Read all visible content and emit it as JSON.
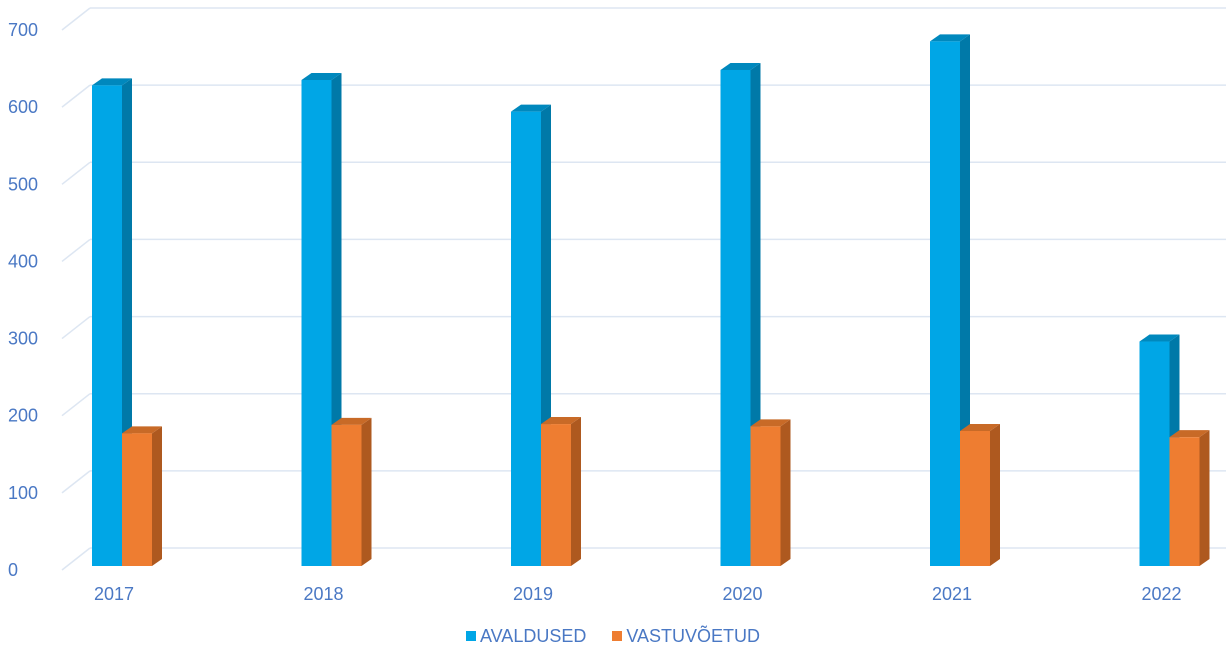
{
  "chart_data": {
    "type": "bar",
    "style": "3d-clustered-column",
    "categories": [
      "2017",
      "2018",
      "2019",
      "2020",
      "2021",
      "2022"
    ],
    "series": [
      {
        "name": "AVALDUSED",
        "values": [
          623,
          630,
          589,
          643,
          680,
          291
        ],
        "color": "#00a6e6",
        "side_color": "#0079a8",
        "top_color": "#0088bd"
      },
      {
        "name": "VASTUVÕETUD",
        "values": [
          172,
          183,
          184,
          181,
          175,
          167
        ],
        "color": "#ee7d31",
        "side_color": "#ae591f",
        "top_color": "#c86a27"
      }
    ],
    "ylim": [
      0,
      700
    ],
    "yticks": [
      "0",
      "100",
      "200",
      "300",
      "400",
      "500",
      "600",
      "700"
    ],
    "grid": true,
    "legend_position": "bottom",
    "label_color": "#4a78c4",
    "grid_color": "#dde6f2"
  }
}
